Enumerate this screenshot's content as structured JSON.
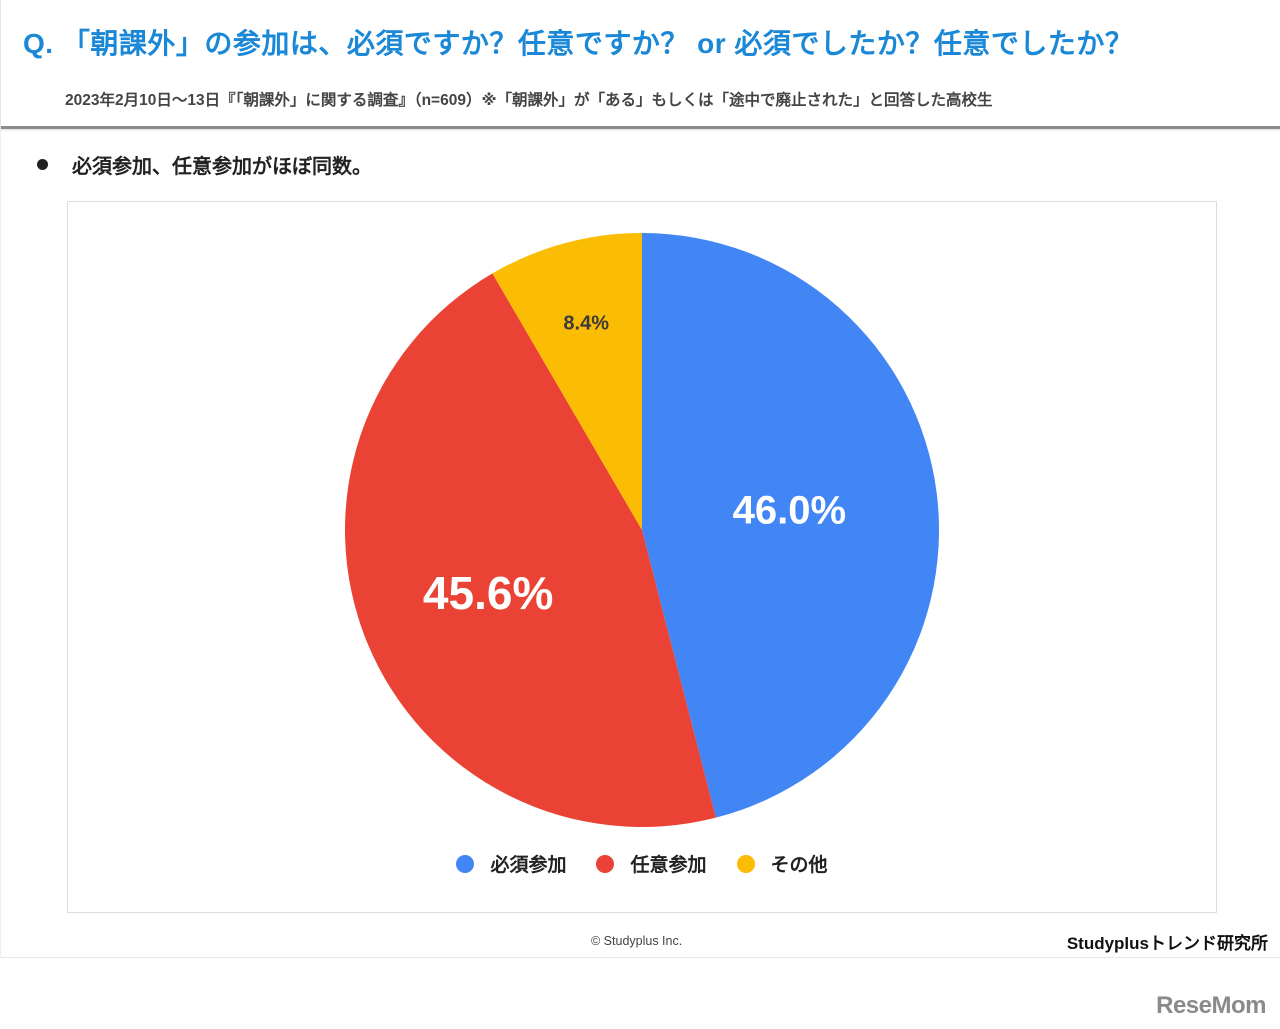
{
  "header": {
    "title": "Q. 「朝課外」の参加は、必須ですか？任意ですか？ or 必須でしたか？任意でしたか？",
    "subtitle": "2023年2月10日～13日『「朝課外」に関する調査』（n=609）※「朝課外」が「ある」もしくは「途中で廃止された」と回答した高校生"
  },
  "summary": {
    "bullet": "必須参加、任意参加がほぼ同数。"
  },
  "chart_data": {
    "type": "pie",
    "title": "Q. 「朝課外」の参加は、必須ですか？任意ですか？ or 必須でしたか？任意でしたか？",
    "categories": [
      "必須参加",
      "任意参加",
      "その他"
    ],
    "values": [
      46.0,
      45.6,
      8.4
    ],
    "labels": [
      "46.0%",
      "45.6%",
      "8.4%"
    ],
    "colors": [
      "#4285f4",
      "#ea4335",
      "#fbbc04"
    ],
    "start_angle": "12 o'clock",
    "direction": "clockwise",
    "legend_position": "bottom"
  },
  "legend": {
    "items": [
      {
        "label": "必須参加",
        "color": "#4285f4"
      },
      {
        "label": "任意参加",
        "color": "#ea4335"
      },
      {
        "label": "その他",
        "color": "#fbbc04"
      }
    ]
  },
  "footer": {
    "copyright": "© Studyplus Inc.",
    "brand": "Studyplusトレンド研究所",
    "watermark": "ReseMom"
  }
}
